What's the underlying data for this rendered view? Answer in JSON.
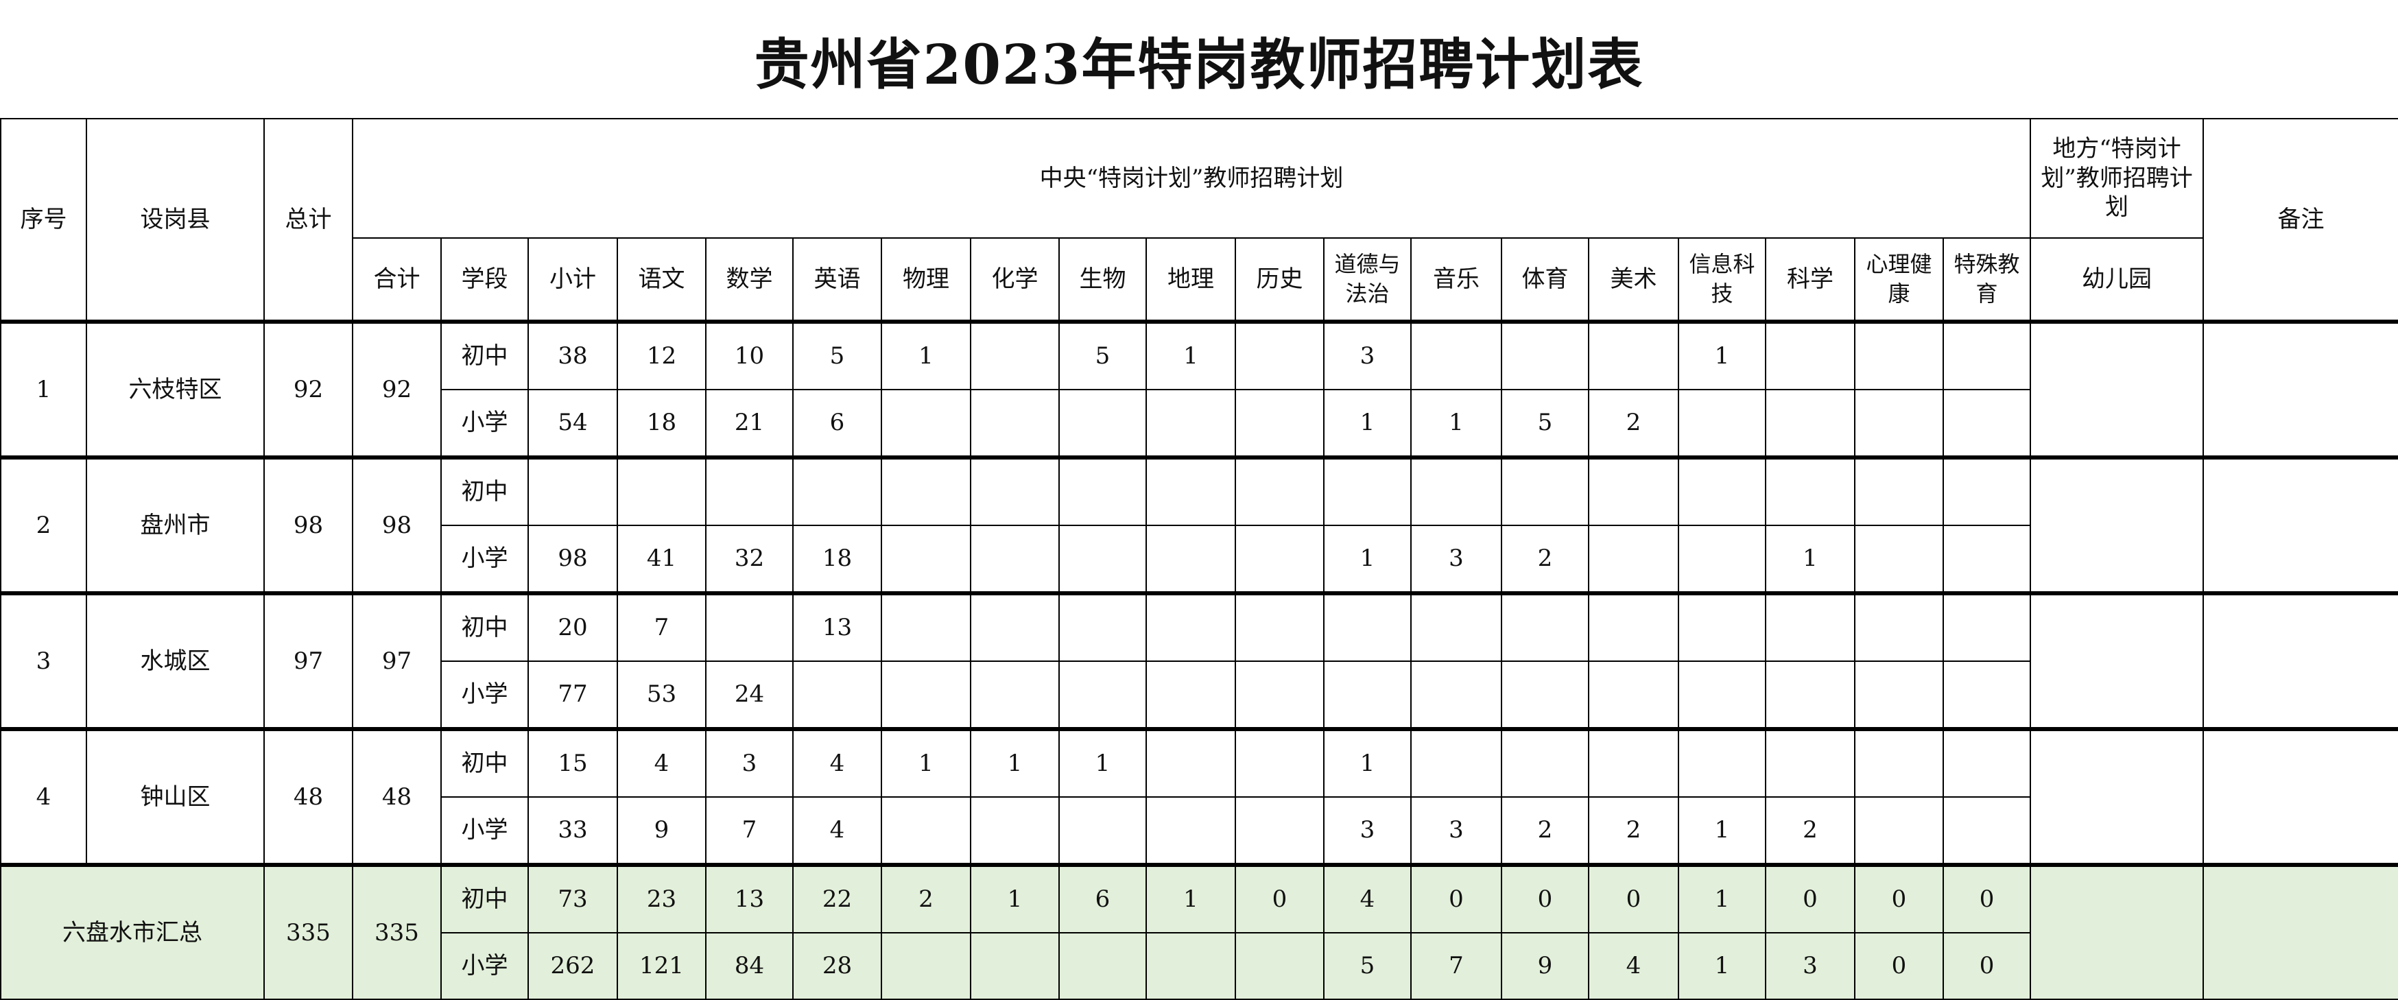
{
  "title": "贵州省2023年特岗教师招聘计划表",
  "header": {
    "seq": "序号",
    "county": "设岗县",
    "total": "总计",
    "central_plan": "中央“特岗计划”教师招聘计划",
    "local_plan": "地方“特岗计划”教师招聘计划",
    "remark": "备注",
    "sub_columns": [
      "合计",
      "学段",
      "小计",
      "语文",
      "数学",
      "英语",
      "物理",
      "化学",
      "生物",
      "地理",
      "历史",
      "道德与法治",
      "音乐",
      "体育",
      "美术",
      "信息科技",
      "科学",
      "心理健康",
      "特殊教育"
    ],
    "kindergarten": "幼儿园"
  },
  "districts": [
    {
      "seq": "1",
      "county": "六枝特区",
      "total": "92",
      "sum": "92",
      "rows": [
        {
          "stage": "初中",
          "values": [
            "38",
            "12",
            "10",
            "5",
            "1",
            "",
            "5",
            "1",
            "",
            "3",
            "",
            "",
            "",
            "1",
            "",
            "",
            ""
          ]
        },
        {
          "stage": "小学",
          "values": [
            "54",
            "18",
            "21",
            "6",
            "",
            "",
            "",
            "",
            "",
            "1",
            "1",
            "5",
            "2",
            "",
            "",
            "",
            ""
          ]
        }
      ]
    },
    {
      "seq": "2",
      "county": "盘州市",
      "total": "98",
      "sum": "98",
      "rows": [
        {
          "stage": "初中",
          "values": [
            "",
            "",
            "",
            "",
            "",
            "",
            "",
            "",
            "",
            "",
            "",
            "",
            "",
            "",
            "",
            "",
            ""
          ]
        },
        {
          "stage": "小学",
          "values": [
            "98",
            "41",
            "32",
            "18",
            "",
            "",
            "",
            "",
            "",
            "1",
            "3",
            "2",
            "",
            "",
            "1",
            "",
            ""
          ]
        }
      ]
    },
    {
      "seq": "3",
      "county": "水城区",
      "total": "97",
      "sum": "97",
      "rows": [
        {
          "stage": "初中",
          "values": [
            "20",
            "7",
            "",
            "13",
            "",
            "",
            "",
            "",
            "",
            "",
            "",
            "",
            "",
            "",
            "",
            "",
            ""
          ]
        },
        {
          "stage": "小学",
          "values": [
            "77",
            "53",
            "24",
            "",
            "",
            "",
            "",
            "",
            "",
            "",
            "",
            "",
            "",
            "",
            "",
            "",
            ""
          ]
        }
      ]
    },
    {
      "seq": "4",
      "county": "钟山区",
      "total": "48",
      "sum": "48",
      "rows": [
        {
          "stage": "初中",
          "values": [
            "15",
            "4",
            "3",
            "4",
            "1",
            "1",
            "1",
            "",
            "",
            "1",
            "",
            "",
            "",
            "",
            "",
            "",
            ""
          ]
        },
        {
          "stage": "小学",
          "values": [
            "33",
            "9",
            "7",
            "4",
            "",
            "",
            "",
            "",
            "",
            "3",
            "3",
            "2",
            "2",
            "1",
            "2",
            "",
            ""
          ]
        }
      ]
    }
  ],
  "summary": {
    "label": "六盘水市汇总",
    "total": "335",
    "sum": "335",
    "rows": [
      {
        "stage": "初中",
        "values": [
          "73",
          "23",
          "13",
          "22",
          "2",
          "1",
          "6",
          "1",
          "0",
          "4",
          "0",
          "0",
          "0",
          "1",
          "0",
          "0",
          "0"
        ]
      },
      {
        "stage": "小学",
        "values": [
          "262",
          "121",
          "84",
          "28",
          "",
          "",
          "",
          "",
          "",
          "5",
          "7",
          "9",
          "4",
          "1",
          "3",
          "0",
          "0"
        ]
      }
    ]
  },
  "colors": {
    "summary_bg": "#e2efda",
    "border": "#000000"
  }
}
